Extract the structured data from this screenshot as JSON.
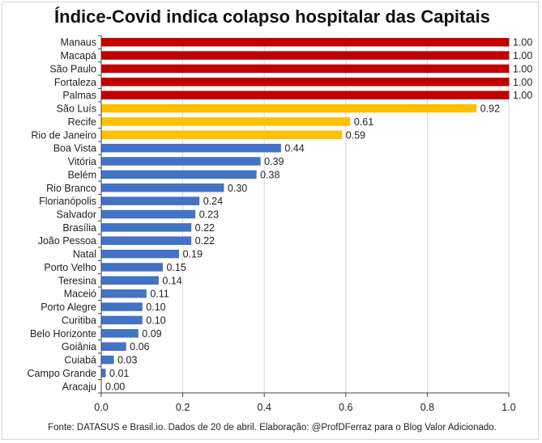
{
  "chart_data": {
    "type": "bar",
    "orientation": "horizontal",
    "title": "Índice-Covid indica colapso hospitalar das Capitais",
    "categories": [
      "Manaus",
      "Macapá",
      "São Paulo",
      "Fortaleza",
      "Palmas",
      "São Luís",
      "Recife",
      "Rio de Janeiro",
      "Boa Vista",
      "Vitória",
      "Belém",
      "Rio Branco",
      "Florianópolis",
      "Salvador",
      "Brasília",
      "João Pessoa",
      "Natal",
      "Porto Velho",
      "Teresina",
      "Maceió",
      "Porto Alegre",
      "Curitiba",
      "Belo Horizonte",
      "Goiânia",
      "Cuiabá",
      "Campo Grande",
      "Aracaju"
    ],
    "values": [
      1.0,
      1.0,
      1.0,
      1.0,
      1.0,
      0.92,
      0.61,
      0.59,
      0.44,
      0.39,
      0.38,
      0.3,
      0.24,
      0.23,
      0.22,
      0.22,
      0.19,
      0.15,
      0.14,
      0.11,
      0.1,
      0.1,
      0.09,
      0.06,
      0.03,
      0.01,
      0.0
    ],
    "value_labels": [
      "1.00",
      "1.00",
      "1.00",
      "1.00",
      "1.00",
      "0.92",
      "0.61",
      "0.59",
      "0.44",
      "0.39",
      "0.38",
      "0.30",
      "0.24",
      "0.23",
      "0.22",
      "0.22",
      "0.19",
      "0.15",
      "0.14",
      "0.11",
      "0.10",
      "0.10",
      "0.09",
      "0.06",
      "0.03",
      "0.01",
      "0.00"
    ],
    "colors": [
      "#C00000",
      "#C00000",
      "#C00000",
      "#C00000",
      "#C00000",
      "#FFC000",
      "#FFC000",
      "#FFC000",
      "#4472C4",
      "#4472C4",
      "#4472C4",
      "#4472C4",
      "#4472C4",
      "#4472C4",
      "#4472C4",
      "#4472C4",
      "#4472C4",
      "#4472C4",
      "#4472C4",
      "#4472C4",
      "#4472C4",
      "#4472C4",
      "#4472C4",
      "#4472C4",
      "#4472C4",
      "#4472C4",
      "#4472C4"
    ],
    "xlim": [
      0,
      1.0
    ],
    "xticks": [
      "0.0",
      "0.2",
      "0.4",
      "0.6",
      "0.8",
      "1.0"
    ],
    "grid": true,
    "xlabel": "",
    "ylabel": ""
  },
  "footer": "Fonte: DATASUS e Brasil.io. Dados de 20 de abril. Elaboração: @ProfDFerraz para o Blog Valor Adicionado."
}
